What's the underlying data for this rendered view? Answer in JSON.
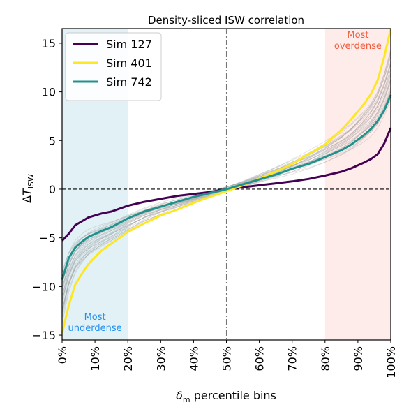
{
  "chart_data": {
    "type": "line",
    "title": "Density-sliced ISW correlation",
    "xlabel": "δm percentile bins",
    "xlabel_parts": {
      "symbol": "δ",
      "sub": "m",
      "rest": " percentile bins"
    },
    "ylabel": "ΔT_ISW",
    "ylabel_parts": {
      "prefix": "Δ",
      "var": "T",
      "sub": "ISW"
    },
    "xlim": [
      0,
      100
    ],
    "ylim": [
      -15.5,
      16.5
    ],
    "grid": false,
    "legend_position": "top-left",
    "x_ticks": [
      0,
      10,
      20,
      30,
      40,
      50,
      60,
      70,
      80,
      90,
      100
    ],
    "x_tick_labels": [
      "0%",
      "10%",
      "20%",
      "30%",
      "40%",
      "50%",
      "60%",
      "70%",
      "80%",
      "90%",
      "100%"
    ],
    "y_ticks": [
      -15,
      -10,
      -5,
      0,
      5,
      10,
      15
    ],
    "y_tick_labels": [
      "−15",
      "−10",
      "−5",
      "0",
      "5",
      "10",
      "15"
    ],
    "shaded_regions": [
      {
        "x": [
          0,
          20
        ],
        "color": "#a8d8e6",
        "label": "Most underdense",
        "label_lines": [
          "Most",
          "underdense"
        ],
        "label_color": "#1f8ff0"
      },
      {
        "x": [
          80,
          100
        ],
        "color": "#fcc9c4",
        "label": "Most overdense",
        "label_lines": [
          "Most",
          "overdense"
        ],
        "label_color": "#f25a3c"
      }
    ],
    "reference_lines": [
      {
        "orientation": "horizontal",
        "value": 0,
        "style": "dashed",
        "color": "#000000"
      },
      {
        "orientation": "vertical",
        "value": 50,
        "style": "dashdot",
        "color": "#777777"
      }
    ],
    "x": [
      0,
      2,
      4,
      6,
      8,
      10,
      12,
      15,
      20,
      25,
      30,
      35,
      40,
      45,
      50,
      55,
      60,
      65,
      70,
      75,
      80,
      85,
      88,
      90,
      92,
      94,
      96,
      98,
      100
    ],
    "series": [
      {
        "name": "Sim 127",
        "color": "#440154",
        "values": [
          -5.3,
          -4.6,
          -3.7,
          -3.3,
          -2.9,
          -2.7,
          -2.5,
          -2.3,
          -1.7,
          -1.3,
          -1.0,
          -0.7,
          -0.5,
          -0.3,
          0.0,
          0.2,
          0.4,
          0.6,
          0.8,
          1.05,
          1.4,
          1.8,
          2.15,
          2.45,
          2.75,
          3.1,
          3.6,
          4.7,
          6.3
        ]
      },
      {
        "name": "Sim 401",
        "color": "#fde725",
        "values": [
          -14.8,
          -12.0,
          -9.8,
          -8.7,
          -7.7,
          -7.0,
          -6.3,
          -5.6,
          -4.4,
          -3.5,
          -2.7,
          -2.1,
          -1.4,
          -0.8,
          -0.2,
          0.4,
          1.1,
          1.8,
          2.6,
          3.6,
          4.6,
          6.1,
          7.2,
          8.0,
          8.8,
          9.8,
          11.2,
          13.6,
          16.5
        ]
      },
      {
        "name": "Sim 742",
        "color": "#21918c",
        "values": [
          -9.3,
          -7.1,
          -6.0,
          -5.4,
          -4.9,
          -4.6,
          -4.3,
          -3.9,
          -3.0,
          -2.3,
          -1.8,
          -1.3,
          -0.8,
          -0.4,
          0.0,
          0.5,
          1.0,
          1.5,
          2.1,
          2.6,
          3.3,
          4.0,
          4.6,
          5.1,
          5.6,
          6.2,
          7.0,
          8.1,
          9.7
        ]
      }
    ],
    "background_realizations": {
      "color": "#9a9a9a",
      "count": 30,
      "values": [
        -11.0,
        -8.5,
        -7.0,
        -6.2,
        -5.6,
        -5.2,
        -4.8,
        -4.3,
        -3.4,
        -2.6,
        -2.0,
        -1.5,
        -1.0,
        -0.5,
        0.0,
        0.5,
        1.1,
        1.7,
        2.3,
        3.0,
        3.8,
        4.7,
        5.4,
        6.0,
        6.6,
        7.3,
        8.3,
        9.8,
        11.8
      ]
    }
  }
}
